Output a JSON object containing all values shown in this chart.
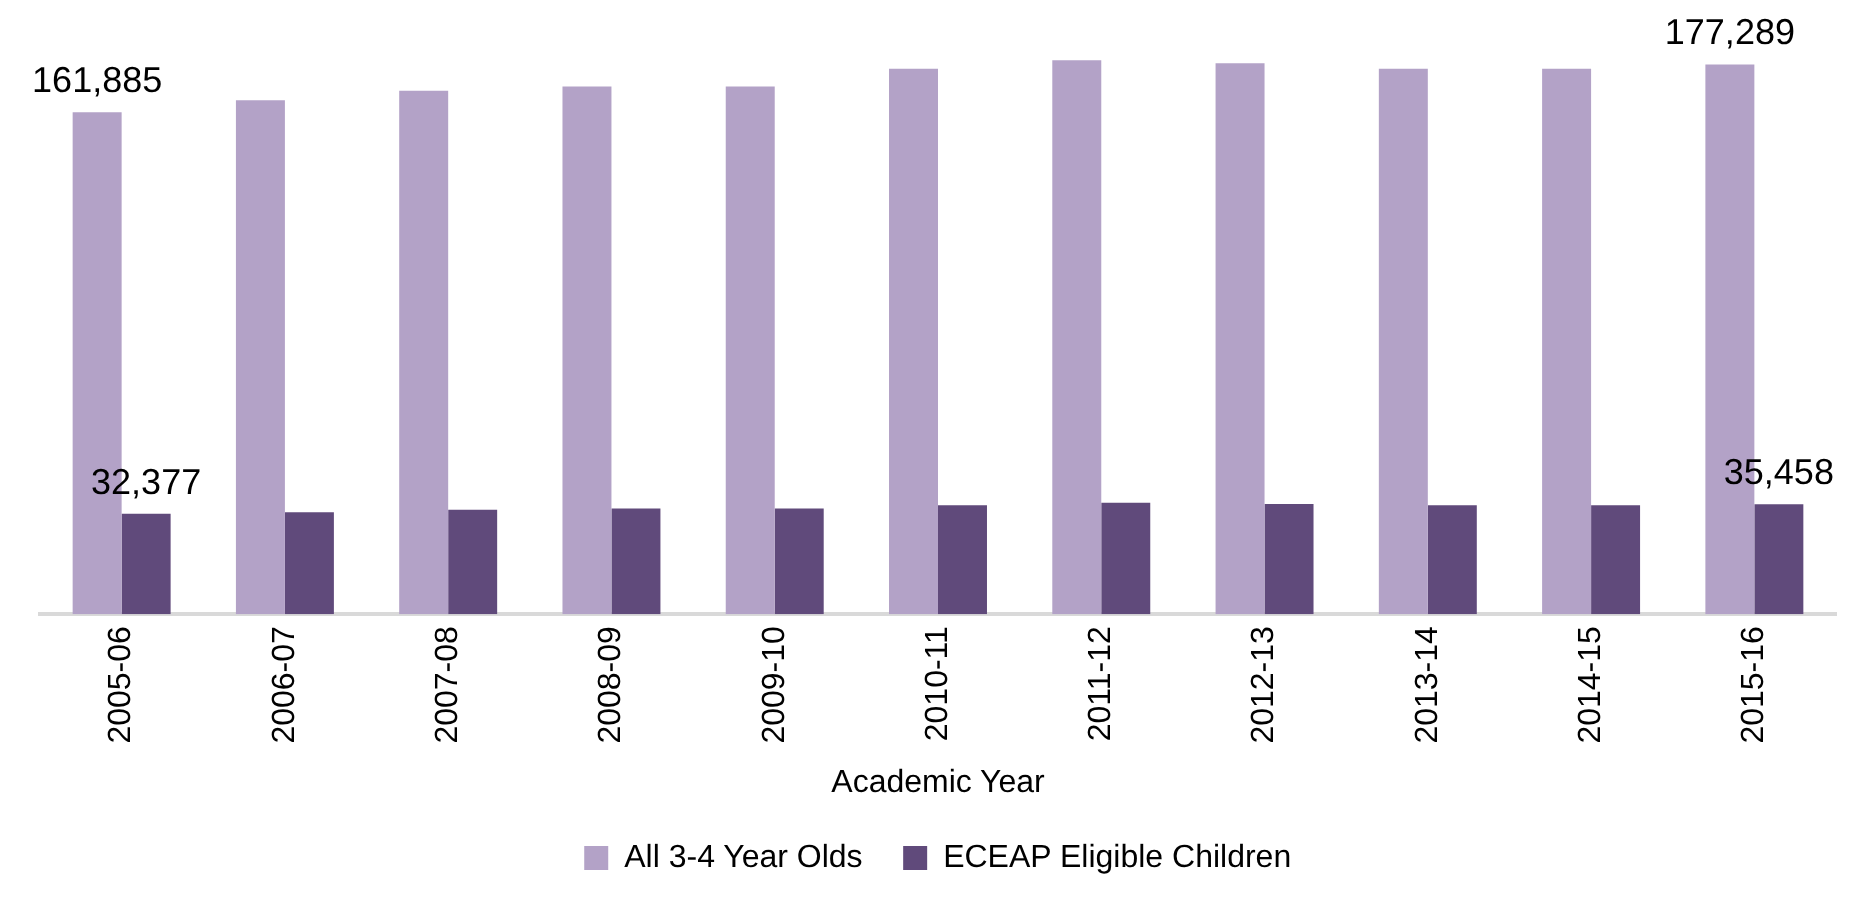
{
  "chart_data": {
    "type": "bar",
    "xlabel": "Academic Year",
    "categories": [
      "2005-06",
      "2006-07",
      "2007-08",
      "2008-09",
      "2009-10",
      "2010-11",
      "2011-12",
      "2012-13",
      "2013-14",
      "2014-15",
      "2015-16"
    ],
    "series": [
      {
        "name": "All 3-4 Year Olds",
        "color": "#b3a2c7",
        "values": [
          161885,
          165700,
          168800,
          170200,
          170200,
          175900,
          178600,
          177700,
          175900,
          175900,
          177289
        ],
        "value_labels": [
          "161,885",
          null,
          null,
          null,
          null,
          null,
          null,
          null,
          null,
          null,
          "177,289"
        ]
      },
      {
        "name": "ECEAP Eligible Children",
        "color": "#604a7b",
        "values": [
          32377,
          32900,
          33700,
          34100,
          34100,
          35100,
          35900,
          35500,
          35100,
          35100,
          35458
        ],
        "value_labels": [
          "32,377",
          null,
          null,
          null,
          null,
          null,
          null,
          null,
          null,
          null,
          "35,458"
        ]
      }
    ],
    "legend": "bottom",
    "grid": false
  }
}
